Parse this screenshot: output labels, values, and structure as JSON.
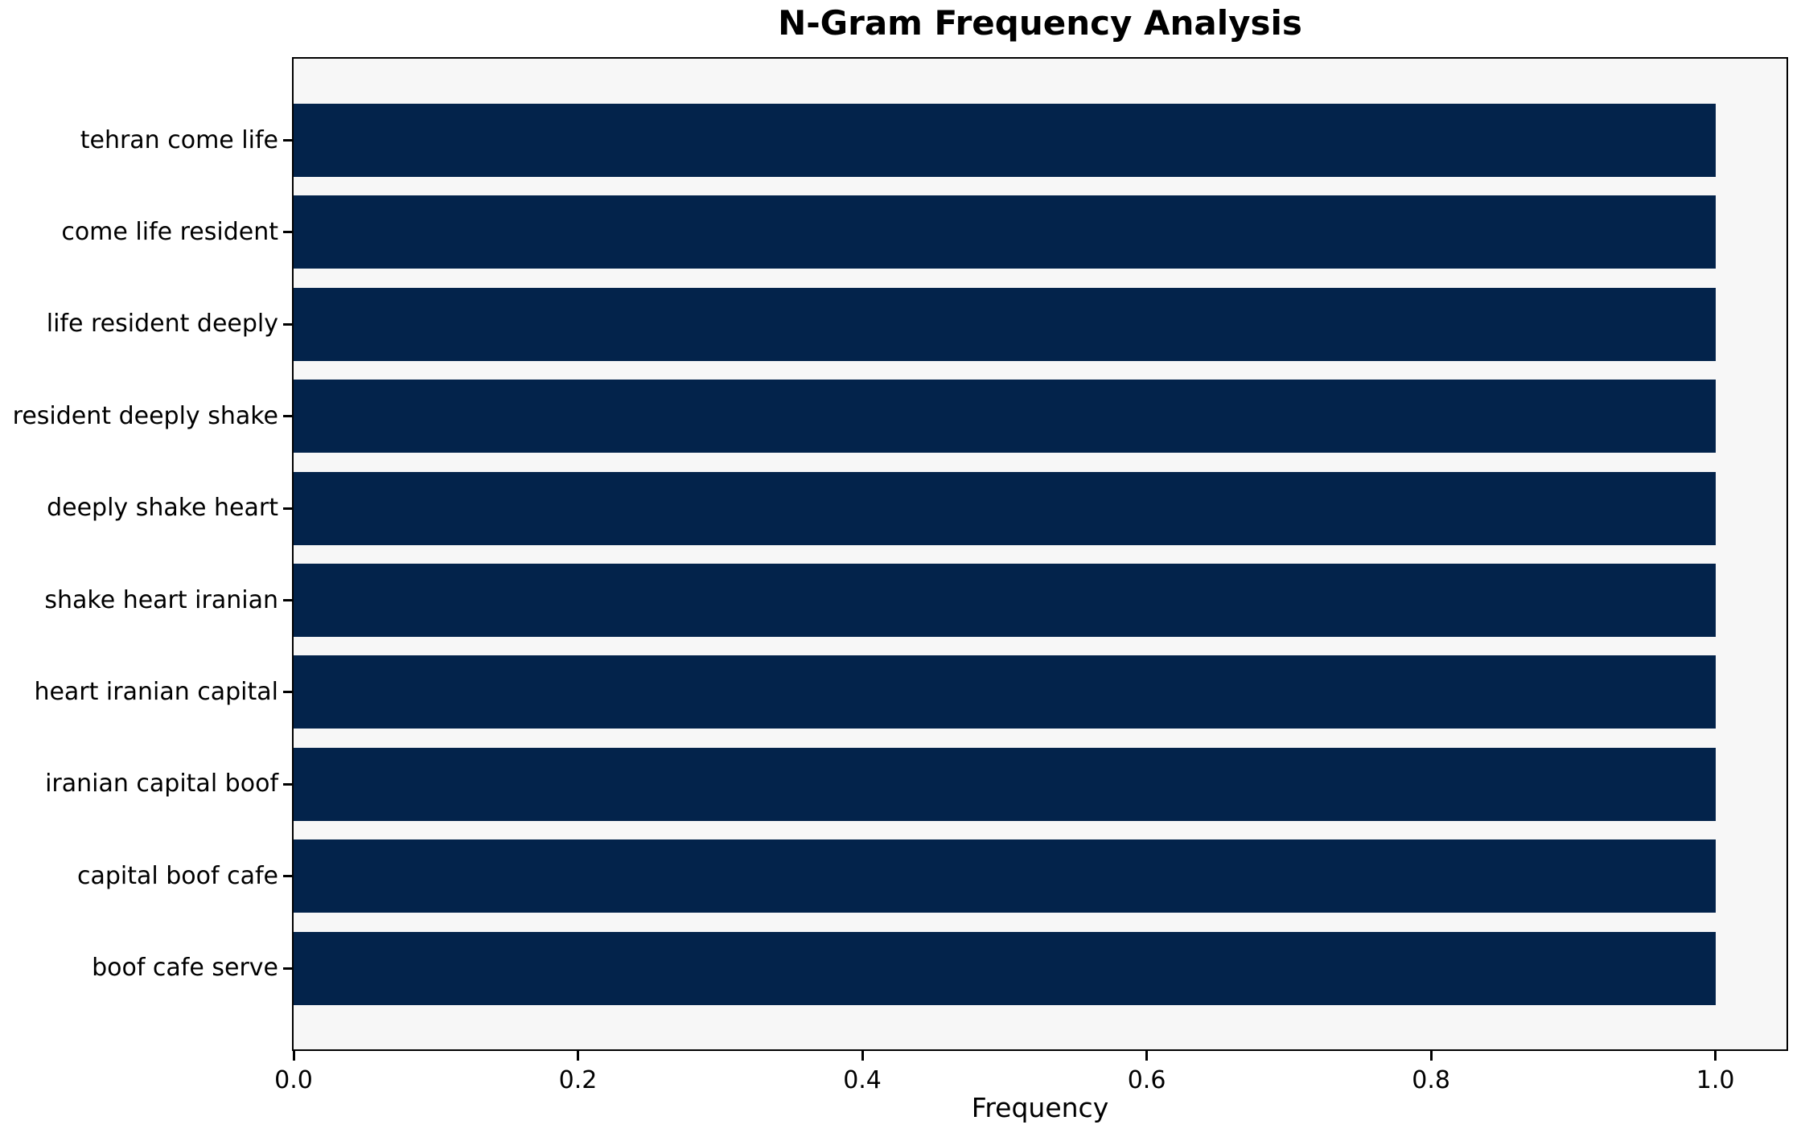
{
  "title": "N-Gram Frequency Analysis",
  "chart_data": {
    "type": "bar",
    "orientation": "horizontal",
    "title": "N-Gram Frequency Analysis",
    "xlabel": "Frequency",
    "ylabel": "",
    "categories": [
      "tehran come life",
      "come life resident",
      "life resident deeply",
      "resident deeply shake",
      "deeply shake heart",
      "shake heart iranian",
      "heart iranian capital",
      "iranian capital boof",
      "capital boof cafe",
      "boof cafe serve"
    ],
    "values": [
      1.0,
      1.0,
      1.0,
      1.0,
      1.0,
      1.0,
      1.0,
      1.0,
      1.0,
      1.0
    ],
    "xlim": [
      0,
      1.05
    ],
    "xtick_labels": [
      "0.0",
      "0.2",
      "0.4",
      "0.6",
      "0.8",
      "1.0"
    ],
    "grid": false,
    "legend": null,
    "bar_color": "#03234b",
    "plot_bg": "#f7f7f7",
    "spine_color": "#000000"
  }
}
